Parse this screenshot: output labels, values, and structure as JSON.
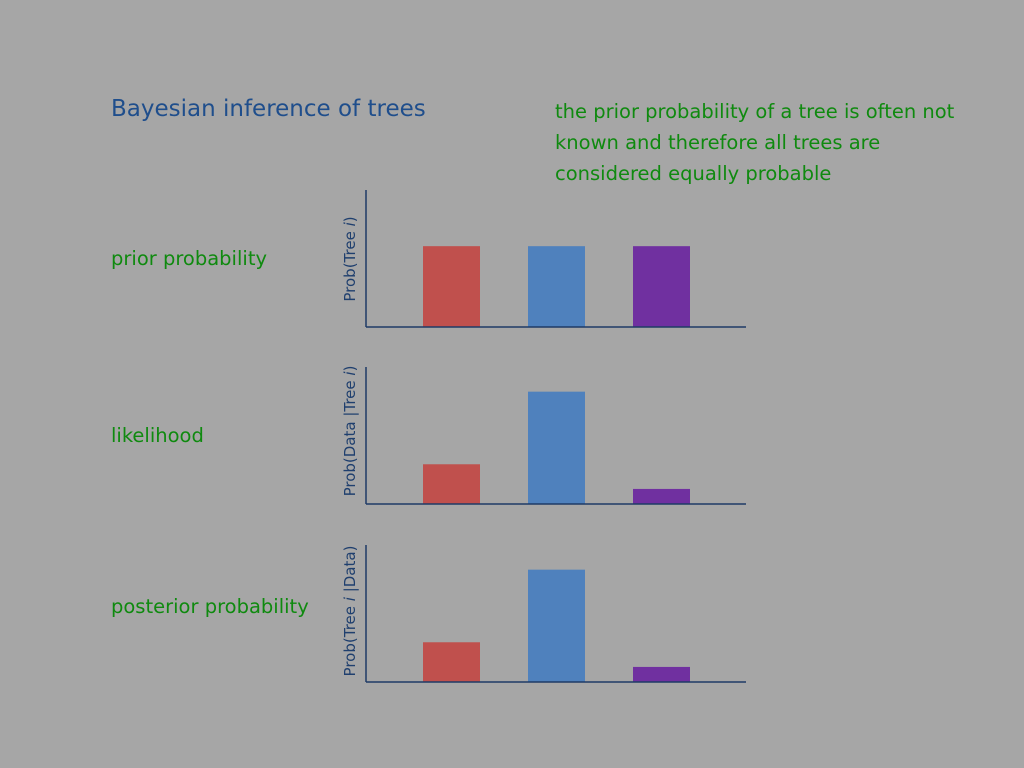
{
  "title": "Bayesian inference of trees",
  "note": "the prior probability of a tree is often not known and therefore all trees are considered equally probable",
  "colors": {
    "axis": "#1f3a66",
    "text_green": "#0f8a0f",
    "title_blue": "#1f4e8c"
  },
  "chart_data": [
    {
      "type": "bar",
      "row_label": "prior probability",
      "ylabel": {
        "before": "Prob(Tree ",
        "italic": "i",
        "after": ")"
      },
      "categories": [
        "",
        "",
        ""
      ],
      "values": [
        0.59,
        0.59,
        0.59
      ],
      "colors": [
        "#c0504d",
        "#4f81bd",
        "#7030a0"
      ],
      "ylim": [
        0,
        1
      ]
    },
    {
      "type": "bar",
      "row_label": "likelihood",
      "ylabel": {
        "before": "Prob(Data |Tree ",
        "italic": "i",
        "after": ")"
      },
      "categories": [
        "",
        "",
        ""
      ],
      "values": [
        0.29,
        0.82,
        0.11
      ],
      "colors": [
        "#c0504d",
        "#4f81bd",
        "#7030a0"
      ],
      "ylim": [
        0,
        1
      ]
    },
    {
      "type": "bar",
      "row_label": "posterior probability",
      "ylabel": {
        "before": "Prob(Tree ",
        "italic": "i",
        "after": " |Data)"
      },
      "categories": [
        "",
        "",
        ""
      ],
      "values": [
        0.29,
        0.82,
        0.11
      ],
      "colors": [
        "#c0504d",
        "#4f81bd",
        "#7030a0"
      ],
      "ylim": [
        0,
        1
      ]
    }
  ]
}
